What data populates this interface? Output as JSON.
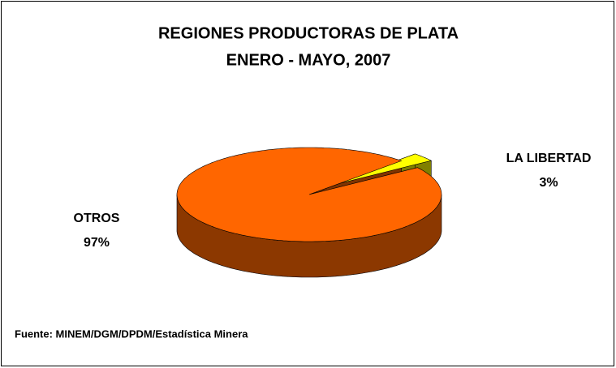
{
  "chart_data": {
    "type": "pie",
    "style": "3d",
    "title": "REGIONES PRODUCTORAS DE PLATA",
    "subtitle": "ENERO - MAYO, 2007",
    "categories": [
      "LA LIBERTAD",
      "OTROS"
    ],
    "values": [
      3,
      97
    ],
    "value_labels": [
      "3%",
      "97%"
    ],
    "colors": [
      "#ffff00",
      "#ff6600"
    ],
    "source": "Fuente: MINEM/DGM/DPDM/Estadística Minera"
  }
}
